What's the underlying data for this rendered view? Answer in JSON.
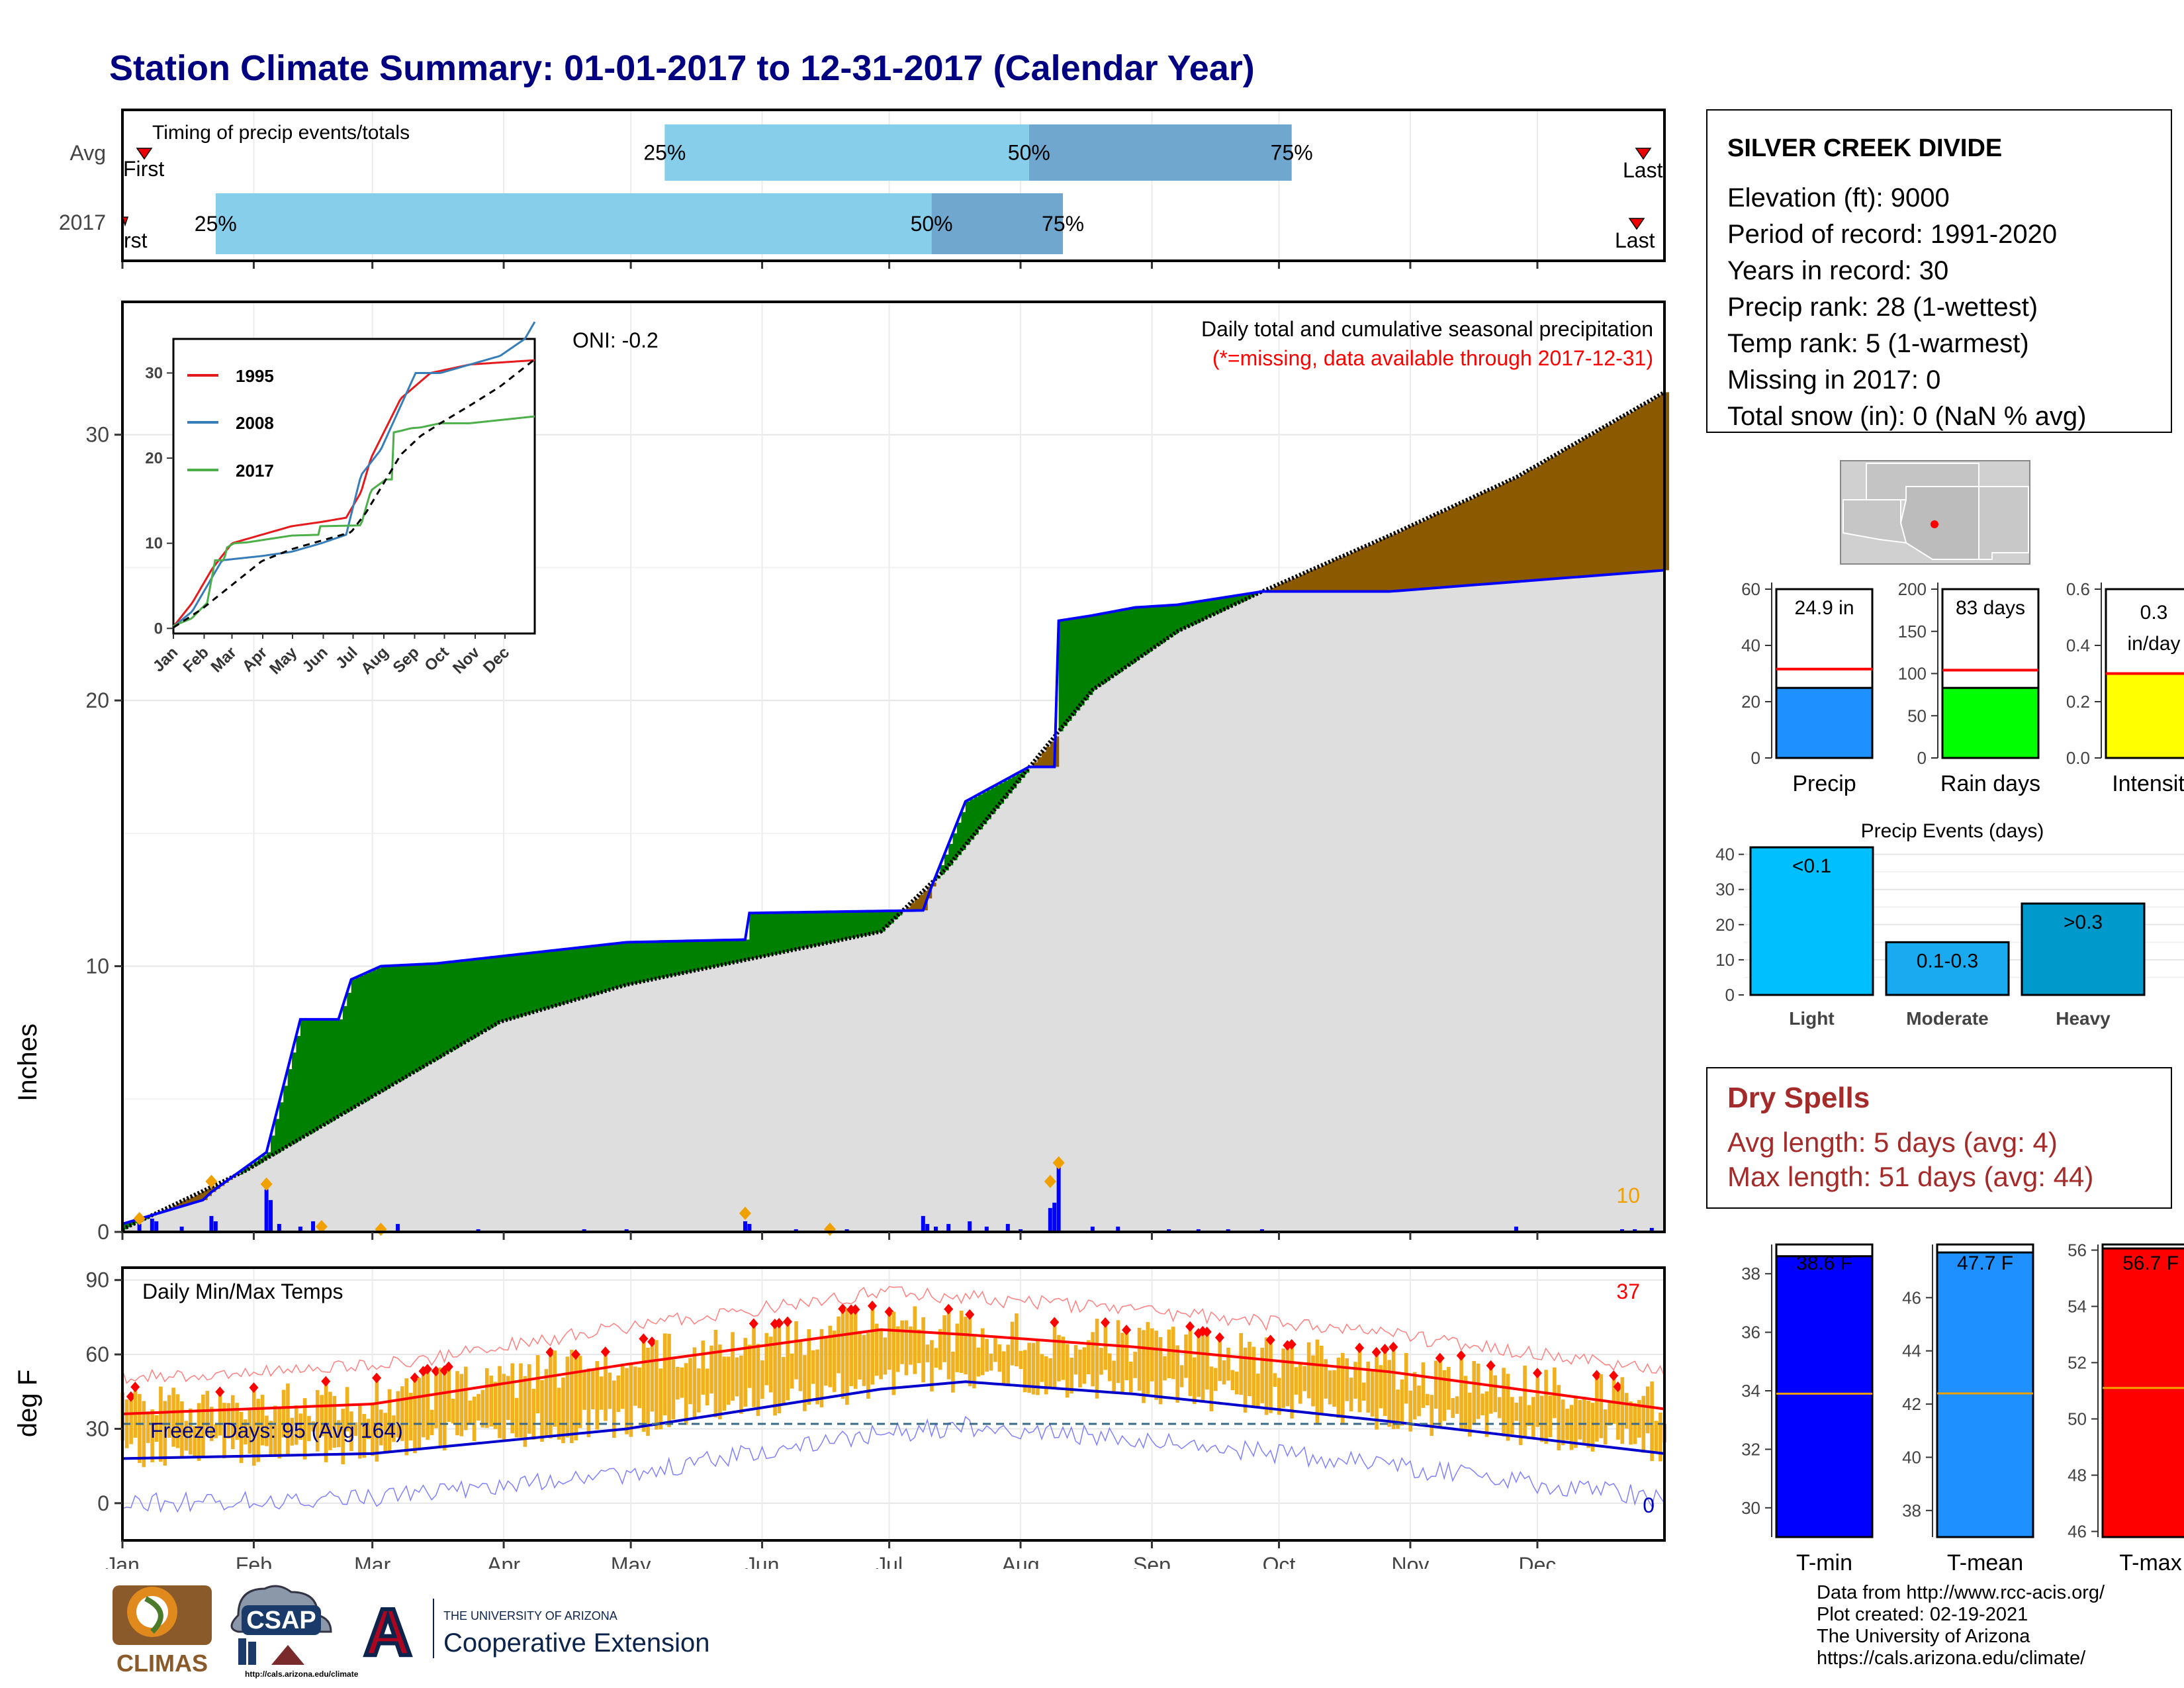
{
  "title": "Station Climate Summary: 01-01-2017 to 12-31-2017 (Calendar Year)",
  "colors": {
    "title": "#000080",
    "light_blue": "#87ceeb",
    "mid_blue": "#6fa7cf",
    "green": "#008000",
    "brown": "#8b5a00",
    "gray_fill": "#dedede",
    "blue": "#0000ff",
    "orange": "#f0b020",
    "red": "#ff0000"
  },
  "timing": {
    "label": "Timing of precip events/totals",
    "rows": [
      "Avg",
      "2017"
    ],
    "first_label": "First",
    "first_label_2017": "rst",
    "last_label": "Last",
    "last_label_avg": "Last",
    "avg": {
      "p25_day": 129,
      "p50_day": 215,
      "p75_day": 277,
      "p25": "25%",
      "p50": "50%",
      "p75": "75%"
    },
    "y2017": {
      "p25_day": 23,
      "p50_day": 192,
      "p75_day": 223,
      "p25": "25%",
      "p50": "50%",
      "p75": "75%"
    }
  },
  "main": {
    "oni": "ONI: -0.2",
    "desc": "Daily total and cumulative seasonal precipitation",
    "missing_note": "(*=missing, data available through 2017-12-31)",
    "ylabel": "Inches",
    "yticks": [
      "0",
      "10",
      "20",
      "30"
    ],
    "count_label": "10"
  },
  "inset": {
    "legend": [
      "1995",
      "2008",
      "2017"
    ],
    "legend_colors": [
      "#e41a1c",
      "#377eb8",
      "#4daf4a"
    ],
    "yticks": [
      "0",
      "10",
      "20",
      "30"
    ],
    "months": [
      "Jan",
      "Feb",
      "Mar",
      "Apr",
      "May",
      "Jun",
      "Jul",
      "Aug",
      "Sep",
      "Oct",
      "Nov",
      "Dec"
    ]
  },
  "temps": {
    "label": "Daily Min/Max Temps",
    "freeze": "Freeze Days: 95 (Avg 164)",
    "ylabel": "deg F",
    "yticks": [
      "0",
      "30",
      "60",
      "90"
    ],
    "count_hot": "37",
    "count_cold": "0"
  },
  "x_months": [
    "Jan",
    "Feb",
    "Mar",
    "Apr",
    "May",
    "Jun",
    "Jul",
    "Aug",
    "Sep",
    "Oct",
    "Nov",
    "Dec"
  ],
  "station": {
    "name": "SILVER CREEK DIVIDE",
    "lines": [
      "Elevation (ft): 9000",
      "Period of record: 1991-2020",
      "Years in record: 30",
      "Precip rank: 28 (1-wettest)",
      "Temp rank: 5 (1-warmest)",
      "Missing in 2017: 0",
      "Total snow (in): 0 (NaN % avg)"
    ]
  },
  "summary_bars": [
    {
      "name": "Precip",
      "value_label": "24.9 in",
      "value": 24.9,
      "avg": 31.6,
      "ymax": 60,
      "ticks": [
        "0",
        "20",
        "40",
        "60"
      ],
      "color": "#1e90ff"
    },
    {
      "name": "Rain days",
      "value_label": "83 days",
      "value": 83,
      "avg": 104,
      "ymax": 200,
      "ticks": [
        "0",
        "50",
        "100",
        "150",
        "200"
      ],
      "color": "#00ff00"
    },
    {
      "name": "Intensity",
      "value_label_1": "0.3",
      "value_label_2": "in/day",
      "value": 0.3,
      "avg": 0.3,
      "ymax": 0.6,
      "ticks": [
        "0.0",
        "0.2",
        "0.4",
        "0.6"
      ],
      "color": "#ffff00"
    }
  ],
  "events": {
    "title": "Precip Events (days)",
    "categories": [
      "Light",
      "Moderate",
      "Heavy"
    ],
    "labels": [
      "<0.1",
      "0.1-0.3",
      ">0.3"
    ],
    "values": [
      42,
      15,
      26
    ],
    "ticks": [
      "0",
      "10",
      "20",
      "30",
      "40"
    ]
  },
  "dry": {
    "title": "Dry Spells",
    "avg": "Avg length: 5 days (avg: 4)",
    "max": "Max length: 51 days (avg: 44)"
  },
  "temp_bars": [
    {
      "name": "T-min",
      "value_label": "38.6 F",
      "value": 38.6,
      "avg": 33.9,
      "ymin": 29,
      "ymax": 39,
      "ticks": [
        "30",
        "32",
        "34",
        "36",
        "38"
      ],
      "color": "#0000ff"
    },
    {
      "name": "T-mean",
      "value_label": "47.7 F",
      "value": 47.7,
      "avg": 42.4,
      "ymin": 37,
      "ymax": 48,
      "ticks": [
        "38",
        "40",
        "42",
        "44",
        "46"
      ],
      "color": "#1e90ff"
    },
    {
      "name": "T-max",
      "value_label": "56.7 F",
      "value": 56.7,
      "avg": 51.1,
      "ymin": 45.8,
      "ymax": 56.2,
      "ticks": [
        "46",
        "48",
        "50",
        "52",
        "54",
        "56"
      ],
      "color": "#ff0000"
    }
  ],
  "credits": [
    "Data from http://www.rcc-acis.org/",
    "Plot created: 02-19-2021",
    "The University of Arizona",
    "https://cals.arizona.edu/climate/"
  ],
  "logos": {
    "climas": "CLIMAS",
    "csap": "CSAP",
    "csap_url": "http://cals.arizona.edu/climate",
    "ua_top": "THE UNIVERSITY OF ARIZONA",
    "ua_bottom": "Cooperative Extension",
    "ua_letter": "A"
  },
  "chart_data": [
    {
      "type": "bar",
      "title": "Timing of precip events/totals",
      "categories": [
        "Avg",
        "2017"
      ],
      "series": [
        {
          "name": "25%",
          "values": [
            129,
            23
          ]
        },
        {
          "name": "50%",
          "values": [
            215,
            192
          ]
        },
        {
          "name": "75%",
          "values": [
            277,
            223
          ]
        }
      ],
      "xlim": [
        0,
        365
      ]
    },
    {
      "type": "area",
      "title": "Daily total and cumulative seasonal precipitation",
      "ylabel": "Inches",
      "ylim": [
        0,
        35
      ],
      "series": [
        {
          "name": "2017 cumulative",
          "x": [
            1,
            20,
            22,
            35,
            43,
            52,
            55,
            62,
            75,
            120,
            148,
            149,
            190,
            192,
            200,
            215,
            221,
            222,
            230,
            240,
            250,
            270,
            300,
            365
          ],
          "y": [
            0.3,
            1.2,
            1.5,
            3,
            8,
            8,
            9.5,
            10,
            10.1,
            10.9,
            11,
            12,
            12.1,
            13,
            16.2,
            17.5,
            17.5,
            23,
            23.2,
            23.5,
            23.6,
            24.1,
            24.1,
            24.9
          ]
        },
        {
          "name": "Average cumulative",
          "x": [
            1,
            30,
            60,
            90,
            120,
            150,
            180,
            195,
            210,
            230,
            250,
            270,
            300,
            330,
            365
          ],
          "y": [
            0.1,
            2.3,
            5.1,
            7.9,
            9.3,
            10.3,
            11.3,
            13.6,
            16.5,
            20.4,
            22.6,
            24.1,
            26.2,
            28.4,
            31.6
          ]
        }
      ]
    },
    {
      "type": "line",
      "title": "Daily Min/Max Temps",
      "ylabel": "deg F",
      "ylim": [
        -15,
        95
      ],
      "x": [
        1,
        60,
        120,
        180,
        200,
        240,
        300,
        365
      ],
      "series": [
        {
          "name": "Normal max",
          "values": [
            36,
            40,
            56,
            70,
            68,
            63,
            53,
            38
          ]
        },
        {
          "name": "Normal min",
          "values": [
            18,
            20,
            30,
            46,
            49,
            44,
            33,
            20
          ]
        }
      ]
    },
    {
      "type": "bar",
      "title": "Precip Events (days)",
      "categories": [
        "Light",
        "Moderate",
        "Heavy"
      ],
      "values": [
        42,
        15,
        26
      ],
      "ylim": [
        0,
        40
      ]
    }
  ]
}
